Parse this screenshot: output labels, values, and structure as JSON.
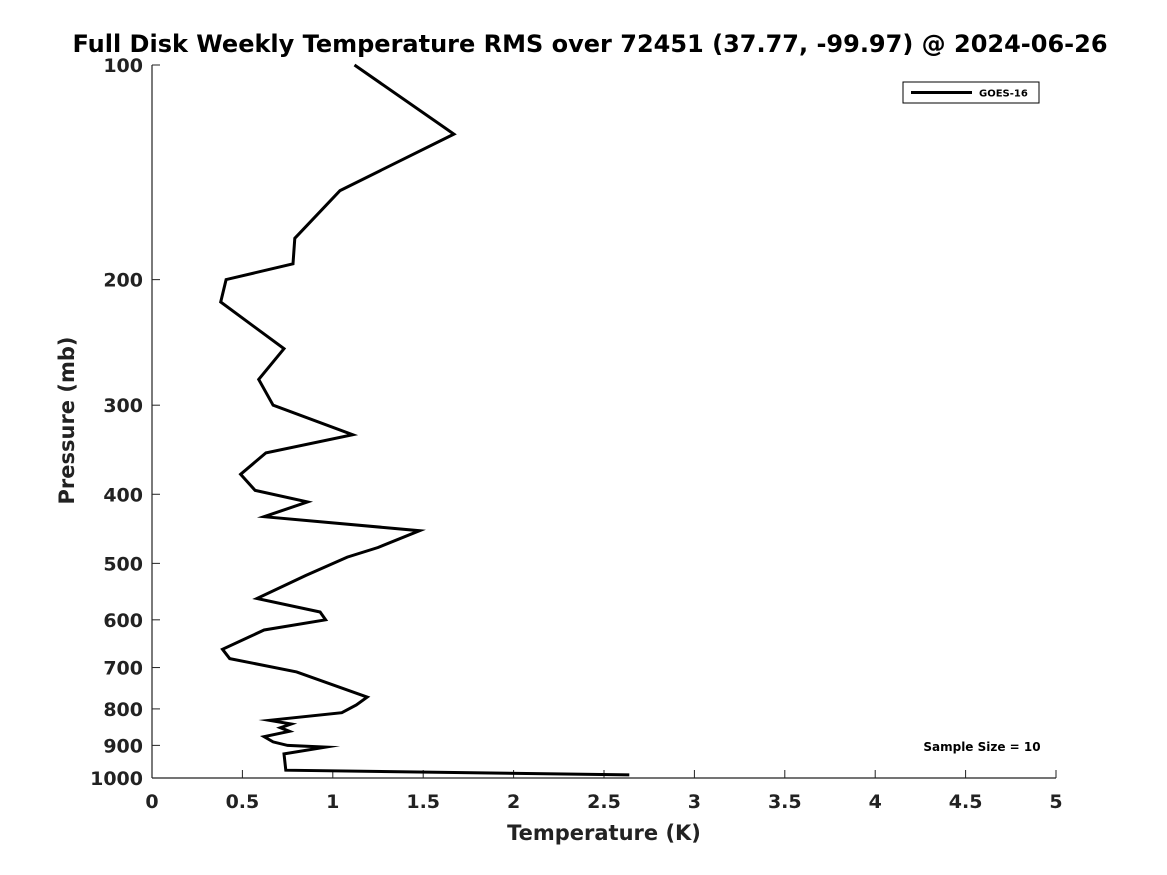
{
  "chart_data": {
    "type": "line",
    "title": "Full Disk Weekly Temperature RMS over 72451 (37.77, -99.97) @ 2024-06-26",
    "xlabel": "Temperature (K)",
    "ylabel": "Pressure (mb)",
    "xlim": [
      0,
      5
    ],
    "ylim": [
      1000,
      100
    ],
    "yscale": "log",
    "y_reversed": true,
    "xticks": [
      "0",
      "0.5",
      "1",
      "1.5",
      "2",
      "2.5",
      "3",
      "3.5",
      "4",
      "4.5",
      "5"
    ],
    "yticks": [
      "100",
      "200",
      "300",
      "400",
      "500",
      "600",
      "700",
      "800",
      "900",
      "1000"
    ],
    "grid": false,
    "legend_position": "top-right",
    "series": [
      {
        "name": "GOES-16",
        "color": "#000000",
        "x": [
          1.12,
          1.67,
          1.04,
          0.79,
          0.78,
          0.41,
          0.38,
          0.73,
          0.59,
          0.67,
          1.11,
          0.63,
          0.49,
          0.57,
          0.86,
          0.62,
          1.48,
          1.25,
          1.08,
          0.85,
          0.58,
          0.93,
          0.96,
          0.62,
          0.39,
          0.43,
          0.8,
          1.19,
          1.13,
          1.05,
          0.65,
          0.77,
          0.71,
          0.76,
          0.62,
          0.67,
          0.75,
          0.96,
          0.73,
          0.74,
          2.64
        ],
        "y": [
          100,
          125,
          150,
          175,
          190,
          200,
          215,
          250,
          276,
          300,
          330,
          350,
          375,
          395,
          410,
          430,
          450,
          475,
          490,
          520,
          560,
          585,
          600,
          620,
          660,
          680,
          710,
          770,
          790,
          810,
          830,
          840,
          850,
          860,
          875,
          890,
          900,
          905,
          925,
          975,
          990
        ]
      }
    ],
    "annotation": "Sample Size = 10"
  }
}
